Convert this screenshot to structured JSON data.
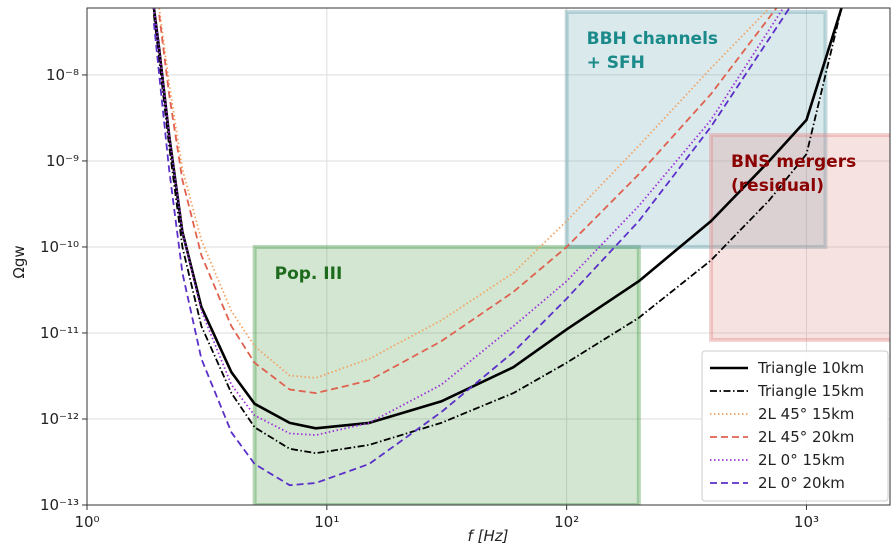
{
  "chart_data": {
    "type": "line",
    "xlabel": "f [Hz]",
    "ylabel": "Ωgw",
    "xscale": "log",
    "yscale": "log",
    "grid": true,
    "legend": "lower right",
    "xlim": [
      1,
      2230
    ],
    "ylim": [
      1e-13,
      6e-08
    ],
    "xticks": [
      {
        "value": 1,
        "label": "10⁰"
      },
      {
        "value": 10,
        "label": "10¹"
      },
      {
        "value": 100,
        "label": "10²"
      },
      {
        "value": 1000,
        "label": "10³"
      }
    ],
    "yticks": [
      {
        "value": 1e-13,
        "label": "10⁻¹³"
      },
      {
        "value": 1e-12,
        "label": "10⁻¹²"
      },
      {
        "value": 1e-11,
        "label": "10⁻¹¹"
      },
      {
        "value": 1e-10,
        "label": "10⁻¹⁰"
      },
      {
        "value": 1e-09,
        "label": "10⁻⁹"
      },
      {
        "value": 1e-08,
        "label": "10⁻⁸"
      }
    ],
    "regions": [
      {
        "label": [
          "Pop. III"
        ],
        "x": [
          5,
          200
        ],
        "y": [
          1e-13,
          1e-10
        ],
        "color": "#4a9d4a",
        "text_color": "#1e6b1e"
      },
      {
        "label": [
          "BBH channels",
          "+ SFH"
        ],
        "x": [
          100,
          1200
        ],
        "y": [
          1e-10,
          5.4e-08
        ],
        "color": "#6aa6b0",
        "text_color": "#1a8a8a"
      },
      {
        "label": [
          "BNS mergers",
          "(residual)"
        ],
        "x": [
          400,
          3000
        ],
        "y": [
          8.3e-12,
          2e-09
        ],
        "color": "#e08a8a",
        "text_color": "#8b0000"
      }
    ],
    "series": [
      {
        "name": "Triangle 10km",
        "color": "#000000",
        "style": "solid",
        "x": [
          1.9,
          2,
          2.2,
          2.5,
          3,
          4,
          5,
          7,
          9,
          15,
          30,
          60,
          100,
          200,
          400,
          700,
          1000,
          1400
        ],
        "values": [
          6e-08,
          2e-08,
          2e-09,
          1.5e-10,
          2e-11,
          3.5e-12,
          1.5e-12,
          9e-13,
          7.8e-13,
          9e-13,
          1.6e-12,
          4e-12,
          1.1e-11,
          4e-11,
          2e-10,
          1e-09,
          3e-09,
          6e-08
        ]
      },
      {
        "name": "Triangle 15km",
        "color": "#000000",
        "style": "dashdot",
        "x": [
          1.9,
          2,
          2.2,
          2.5,
          3,
          4,
          5,
          7,
          9,
          15,
          30,
          60,
          100,
          200,
          400,
          700,
          1000,
          1400
        ],
        "values": [
          5e-08,
          1.5e-08,
          1.5e-09,
          1e-10,
          1.2e-11,
          2e-12,
          8e-13,
          4.5e-13,
          4e-13,
          5e-13,
          9e-13,
          2e-12,
          4.5e-12,
          1.5e-11,
          7e-11,
          3.5e-10,
          1.2e-09,
          6e-08
        ]
      },
      {
        "name": "2L 45° 15km",
        "color": "#f4a261",
        "style": "dotted",
        "x": [
          2,
          2.2,
          2.5,
          3,
          4,
          5,
          7,
          9,
          15,
          30,
          60,
          100,
          200,
          400,
          700
        ],
        "values": [
          6e-08,
          8e-09,
          8e-10,
          1.2e-10,
          1.8e-11,
          7e-12,
          3.2e-12,
          3e-12,
          5e-12,
          1.4e-11,
          5e-11,
          2e-10,
          1.5e-09,
          1.2e-08,
          6e-08
        ]
      },
      {
        "name": "2L 45° 20km",
        "color": "#e0604e",
        "style": "dashed",
        "x": [
          2,
          2.2,
          2.5,
          3,
          4,
          5,
          7,
          9,
          15,
          30,
          60,
          100,
          200,
          400,
          750
        ],
        "values": [
          5e-08,
          6e-09,
          6e-10,
          8e-11,
          1.2e-11,
          4.5e-12,
          2.2e-12,
          2e-12,
          2.8e-12,
          8e-12,
          3e-11,
          1e-10,
          7e-10,
          6e-09,
          6e-08
        ]
      },
      {
        "name": "2L 0° 15km",
        "color": "#9b30d9",
        "style": "dotted",
        "x": [
          1.9,
          2,
          2.2,
          2.5,
          3,
          4,
          5,
          7,
          9,
          15,
          30,
          60,
          100,
          200,
          400,
          800
        ],
        "values": [
          6e-08,
          2e-08,
          2e-09,
          1.5e-10,
          1.8e-11,
          2.5e-12,
          1.1e-12,
          6.8e-13,
          6.5e-13,
          9e-13,
          2.5e-12,
          1.2e-11,
          4e-11,
          3e-10,
          3e-09,
          6e-08
        ]
      },
      {
        "name": "2L 0° 20km",
        "color": "#5b2fc9",
        "style": "dashed",
        "x": [
          1.9,
          2,
          2.2,
          2.5,
          3,
          4,
          5,
          7,
          9,
          15,
          30,
          60,
          100,
          200,
          400,
          850
        ],
        "values": [
          4e-08,
          1e-08,
          8e-10,
          5e-11,
          5e-12,
          7e-13,
          3e-13,
          1.7e-13,
          1.8e-13,
          3e-13,
          1.2e-12,
          6e-12,
          2.5e-11,
          2e-10,
          2.5e-09,
          6e-08
        ]
      }
    ]
  }
}
